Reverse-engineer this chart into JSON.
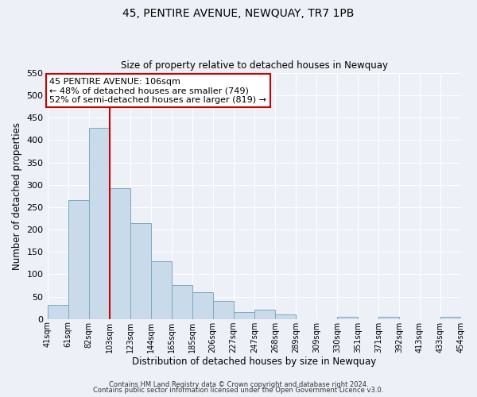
{
  "title": "45, PENTIRE AVENUE, NEWQUAY, TR7 1PB",
  "subtitle": "Size of property relative to detached houses in Newquay",
  "xlabel": "Distribution of detached houses by size in Newquay",
  "ylabel": "Number of detached properties",
  "bar_values": [
    32,
    265,
    428,
    293,
    214,
    129,
    76,
    59,
    40,
    15,
    20,
    10,
    0,
    0,
    5,
    0,
    5,
    0,
    0,
    5
  ],
  "bar_labels": [
    "41sqm",
    "61sqm",
    "82sqm",
    "103sqm",
    "123sqm",
    "144sqm",
    "165sqm",
    "185sqm",
    "206sqm",
    "227sqm",
    "247sqm",
    "268sqm",
    "289sqm",
    "309sqm",
    "330sqm",
    "351sqm",
    "371sqm",
    "392sqm",
    "413sqm",
    "433sqm",
    "454sqm"
  ],
  "bar_color": "#c9daea",
  "bar_edge_color": "#7baabf",
  "vline_color": "#cc0000",
  "annotation_text": "45 PENTIRE AVENUE: 106sqm\n← 48% of detached houses are smaller (749)\n52% of semi-detached houses are larger (819) →",
  "annotation_box_color": "white",
  "annotation_box_edge": "#cc0000",
  "ylim": [
    0,
    550
  ],
  "yticks": [
    0,
    50,
    100,
    150,
    200,
    250,
    300,
    350,
    400,
    450,
    500,
    550
  ],
  "footer1": "Contains HM Land Registry data © Crown copyright and database right 2024.",
  "footer2": "Contains public sector information licensed under the Open Government Licence v3.0.",
  "bg_color": "#eef0f8",
  "grid_color": "#ffffff"
}
